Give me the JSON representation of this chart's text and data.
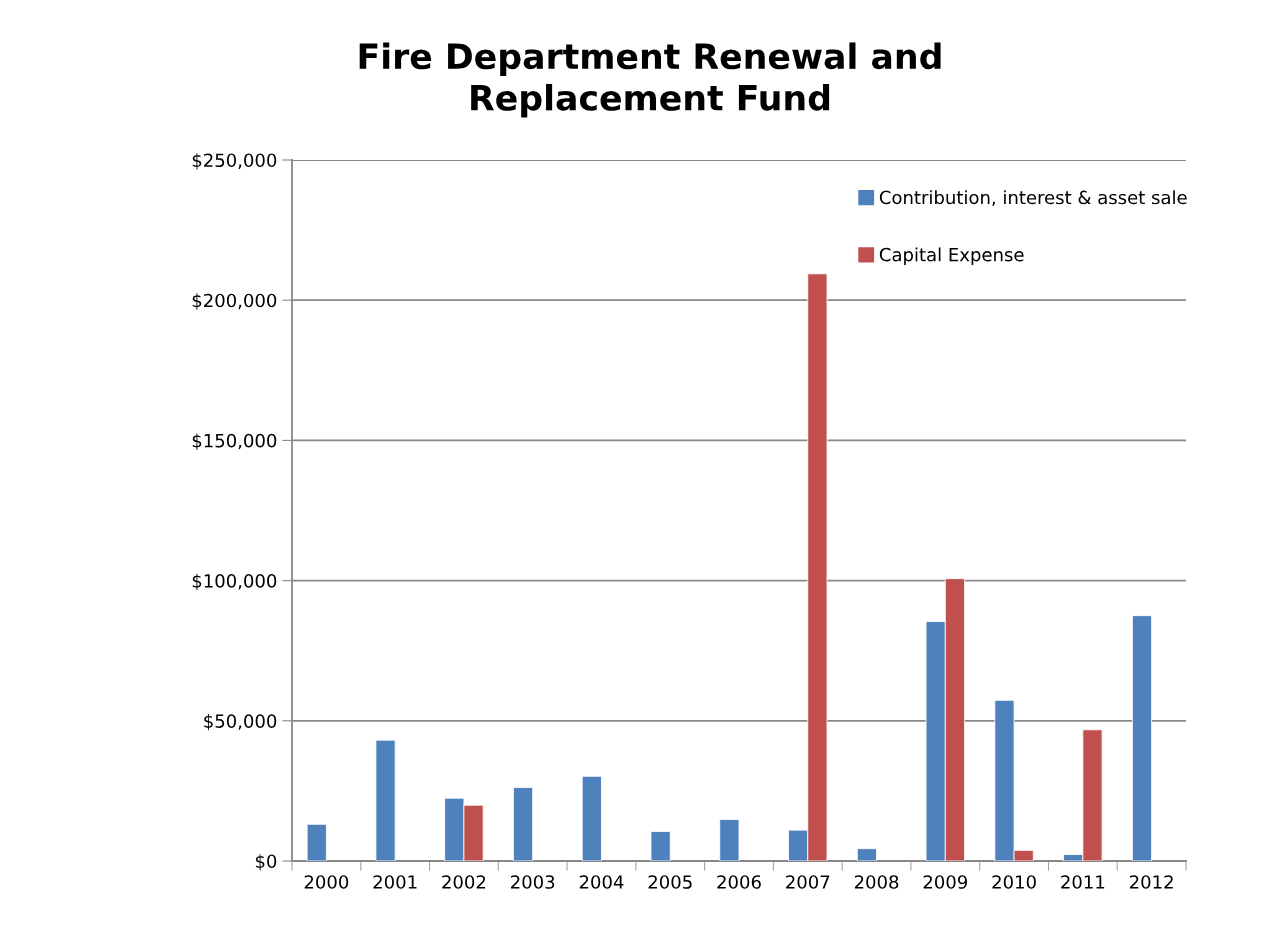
{
  "chart_data": {
    "type": "bar",
    "title": "Fire Department Renewal and\nReplacement Fund",
    "categories": [
      "2000",
      "2001",
      "2002",
      "2003",
      "2004",
      "2005",
      "2006",
      "2007",
      "2008",
      "2009",
      "2010",
      "2011",
      "2012"
    ],
    "series": [
      {
        "name": "Contribution, interest & asset sale",
        "color": "#4f81bd",
        "values": [
          13100,
          43100,
          22400,
          26200,
          30200,
          10500,
          14800,
          11000,
          4400,
          85400,
          57300,
          2300,
          87500
        ]
      },
      {
        "name": "Capital Expense",
        "color": "#c0504d",
        "values": [
          null,
          null,
          19900,
          null,
          null,
          null,
          null,
          209400,
          null,
          100700,
          3800,
          46800,
          null
        ]
      }
    ],
    "ylim": [
      0,
      250000
    ],
    "yticks": [
      {
        "value": 0,
        "label": "$0"
      },
      {
        "value": 50000,
        "label": "$50,000"
      },
      {
        "value": 100000,
        "label": "$100,000"
      },
      {
        "value": 150000,
        "label": "$150,000"
      },
      {
        "value": 200000,
        "label": "$200,000"
      },
      {
        "value": 250000,
        "label": "$250,000"
      }
    ],
    "grid": "y",
    "legend": "top right"
  }
}
